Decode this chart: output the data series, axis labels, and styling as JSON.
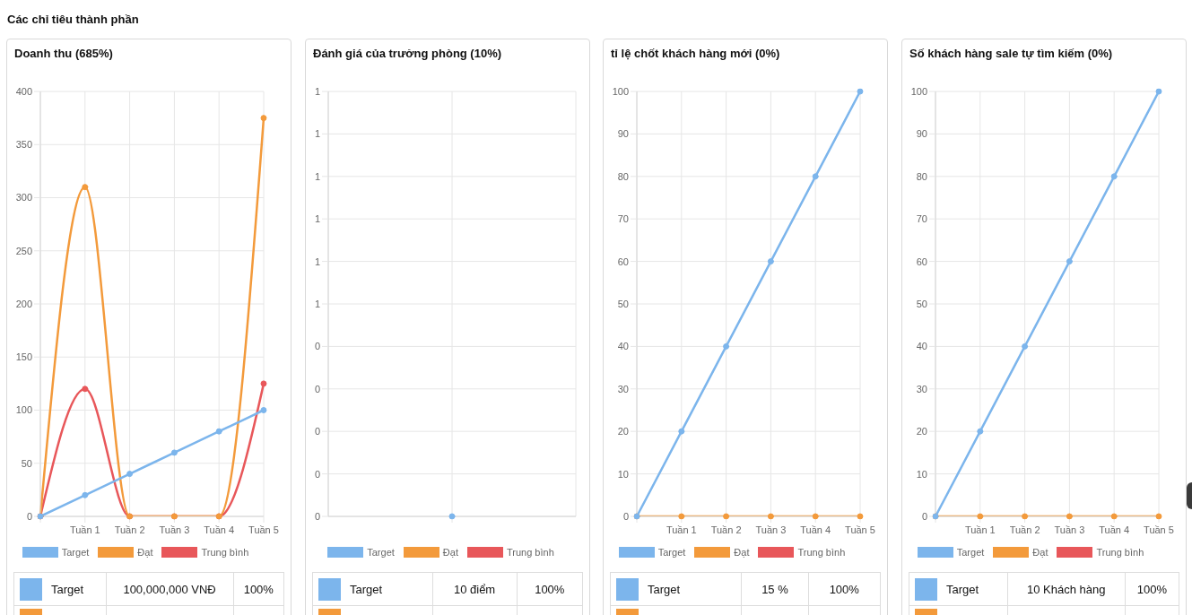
{
  "chart_data": [
    {
      "type": "other",
      "title": "Các chỉ tiêu thành phần"
    },
    {
      "type": "line",
      "title": "Doanh thu (685%)",
      "categories": [
        null,
        "Tuần 1",
        "Tuần 2",
        "Tuần 3",
        "Tuần 4",
        "Tuần 5"
      ],
      "series": [
        {
          "name": "Target",
          "color": "#7cb5ec",
          "values": [
            0,
            20,
            40,
            60,
            80,
            100
          ]
        },
        {
          "name": "Đạt",
          "color": "#f39a3b",
          "values": [
            0,
            310,
            0,
            0,
            0,
            375
          ]
        },
        {
          "name": "Trung bình",
          "color": "#e8575a",
          "values": [
            0,
            120,
            0,
            0,
            0,
            125
          ]
        }
      ],
      "ylim": [
        0,
        400
      ],
      "yticks": [
        0,
        50,
        100,
        150,
        200,
        250,
        300,
        350,
        400
      ],
      "grid": true,
      "legend": "bottom",
      "marker": "circle",
      "line_style": "solid",
      "annotations": [
        "Target",
        "100,000,000 VNĐ",
        "100%"
      ]
    },
    {
      "type": "line",
      "title": "Đánh giá của trưởng phòng (10%)",
      "categories": [
        null
      ],
      "series": [
        {
          "name": "Target",
          "color": "#7cb5ec",
          "values": [
            0
          ]
        },
        {
          "name": "Đạt",
          "color": "#f39a3b",
          "values": [
            null
          ]
        },
        {
          "name": "Trung bình",
          "color": "#e8575a",
          "values": [
            null
          ]
        }
      ],
      "ylim": [
        0,
        1
      ],
      "yticks": [
        0,
        {
          "value": 0.1,
          "label": "0"
        },
        {
          "value": 0.2,
          "label": "0"
        },
        {
          "value": 0.3,
          "label": "0"
        },
        {
          "value": 0.4,
          "label": "0"
        },
        {
          "value": 0.5,
          "label": "1"
        },
        {
          "value": 0.6,
          "label": "1"
        },
        {
          "value": 0.7,
          "label": "1"
        },
        {
          "value": 0.8,
          "label": "1"
        },
        {
          "value": 0.9,
          "label": "1"
        },
        1
      ],
      "grid": true,
      "legend": "bottom",
      "marker": "circle",
      "line_style": "solid",
      "annotations": [
        "Target",
        "10 điểm",
        "100%"
      ]
    },
    {
      "type": "line",
      "title": "tỉ lệ chốt khách hàng mới (0%)",
      "categories": [
        null,
        "Tuần 1",
        "Tuần 2",
        "Tuần 3",
        "Tuần 4",
        "Tuần 5"
      ],
      "series": [
        {
          "name": "Target",
          "color": "#7cb5ec",
          "values": [
            0,
            20,
            40,
            60,
            80,
            100
          ]
        },
        {
          "name": "Đạt",
          "color": "#f39a3b",
          "values": [
            0,
            0,
            0,
            0,
            0,
            0
          ]
        },
        {
          "name": "Trung bình",
          "color": "#e8575a",
          "values": [
            null,
            null,
            null,
            null,
            null,
            null
          ]
        }
      ],
      "ylim": [
        0,
        100
      ],
      "yticks": [
        0,
        10,
        20,
        30,
        40,
        50,
        60,
        70,
        80,
        90,
        100
      ],
      "grid": true,
      "legend": "bottom",
      "marker": "circle",
      "line_style": "solid",
      "annotations": [
        "Target",
        "15 %",
        "100%"
      ]
    },
    {
      "type": "line",
      "title": "Số khách hàng sale tự tìm kiếm (0%)",
      "categories": [
        null,
        "Tuần 1",
        "Tuần 2",
        "Tuần 3",
        "Tuần 4",
        "Tuần 5"
      ],
      "series": [
        {
          "name": "Target",
          "color": "#7cb5ec",
          "values": [
            0,
            20,
            40,
            60,
            80,
            100
          ]
        },
        {
          "name": "Đạt",
          "color": "#f39a3b",
          "values": [
            0,
            0,
            0,
            0,
            0,
            0
          ]
        },
        {
          "name": "Trung bình",
          "color": "#e8575a",
          "values": [
            null,
            null,
            null,
            null,
            null,
            null
          ]
        }
      ],
      "ylim": [
        0,
        100
      ],
      "yticks": [
        0,
        10,
        20,
        30,
        40,
        50,
        60,
        70,
        80,
        90,
        100
      ],
      "grid": true,
      "legend": "bottom",
      "marker": "circle",
      "line_style": "solid",
      "annotations": [
        "Target",
        "10 Khách hàng",
        "100%"
      ]
    }
  ]
}
